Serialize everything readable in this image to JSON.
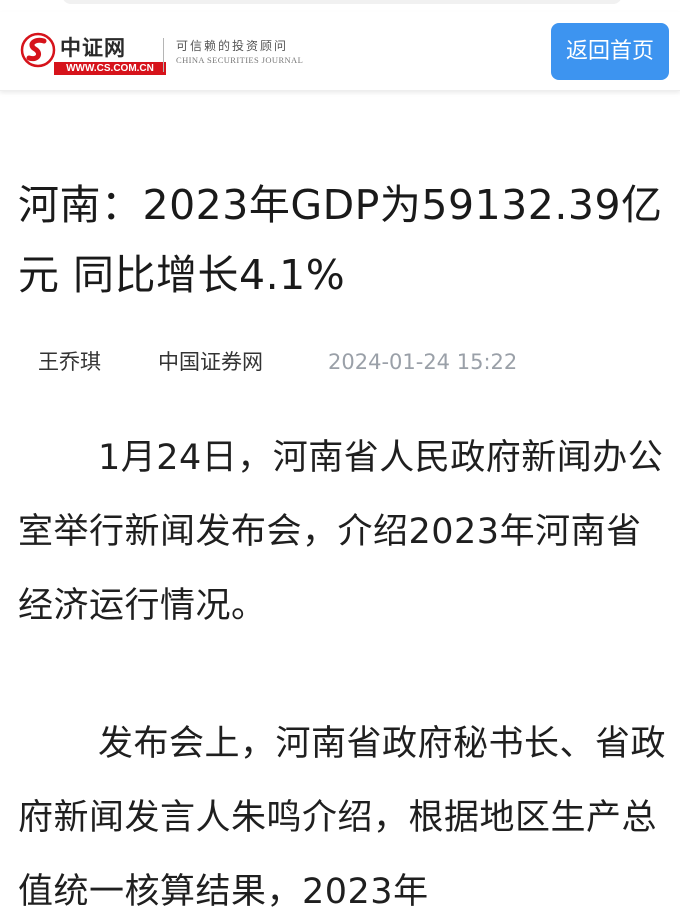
{
  "header": {
    "logo_name": "中证网",
    "logo_url": "WWW.CS.COM.CN",
    "tagline_cn": "可信赖的投资顾问",
    "tagline_en": "CHINA SECURITIES JOURNAL",
    "home_button": "返回首页",
    "brand_color": "#d6131b",
    "button_color": "#3d94f0"
  },
  "article": {
    "title": "河南：2023年GDP为59132.39亿元 同比增长4.1%",
    "author": "王乔琪",
    "source": "中国证券网",
    "time": "2024-01-24 15:22",
    "paragraphs": [
      "1月24日，河南省人民政府新闻办公室举行新闻发布会，介绍2023年河南省经济运行情况。",
      "发布会上，河南省政府秘书长、省政府新闻发言人朱鸣介绍，根据地区生产总值统一核算结果，2023年"
    ]
  }
}
